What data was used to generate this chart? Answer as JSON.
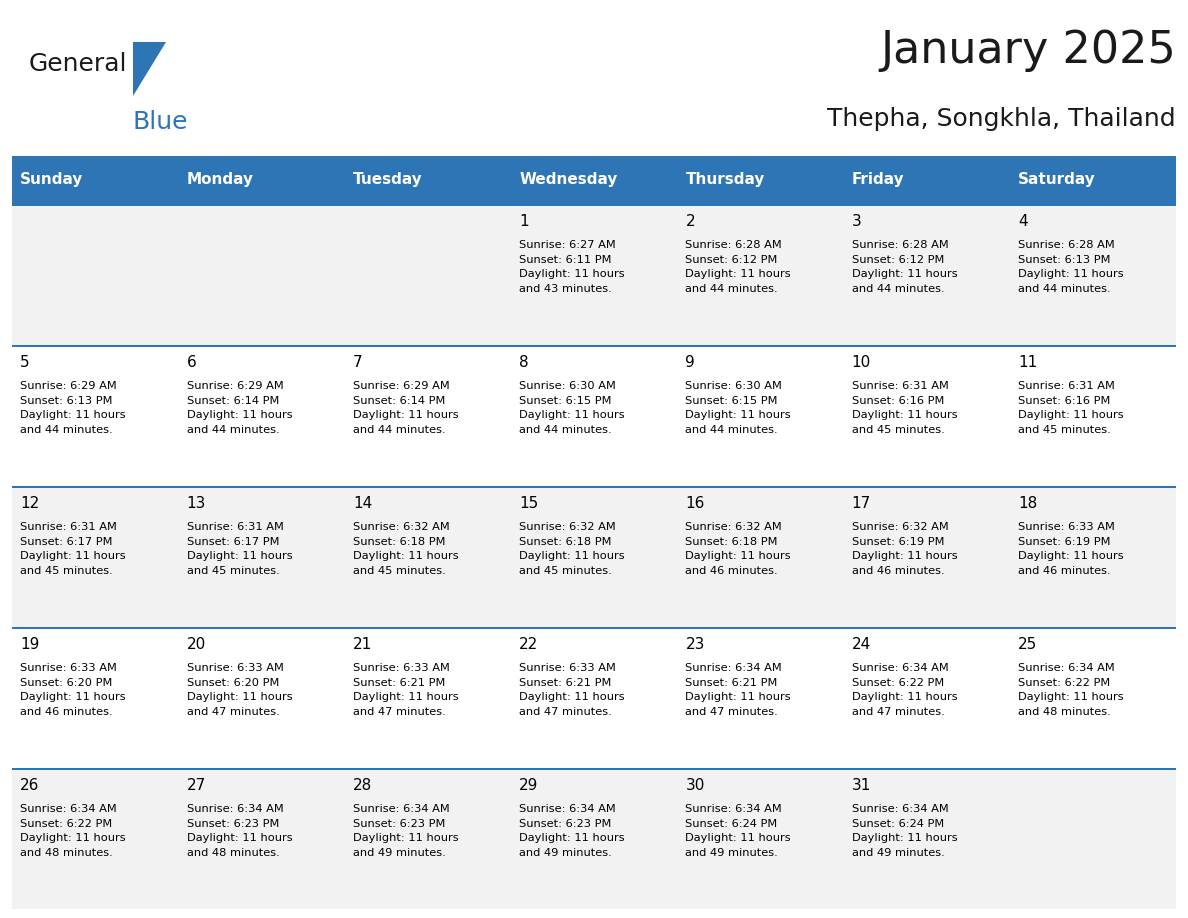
{
  "title": "January 2025",
  "subtitle": "Thepha, Songkhla, Thailand",
  "header_bg": "#2E75B6",
  "header_text_color": "#FFFFFF",
  "day_headers": [
    "Sunday",
    "Monday",
    "Tuesday",
    "Wednesday",
    "Thursday",
    "Friday",
    "Saturday"
  ],
  "cell_bg_even": "#F2F2F2",
  "cell_bg_odd": "#FFFFFF",
  "row_line_color": "#2E75B6",
  "text_color": "#000000",
  "calendar": [
    [
      {
        "day": null,
        "info": null
      },
      {
        "day": null,
        "info": null
      },
      {
        "day": null,
        "info": null
      },
      {
        "day": 1,
        "info": "Sunrise: 6:27 AM\nSunset: 6:11 PM\nDaylight: 11 hours\nand 43 minutes."
      },
      {
        "day": 2,
        "info": "Sunrise: 6:28 AM\nSunset: 6:12 PM\nDaylight: 11 hours\nand 44 minutes."
      },
      {
        "day": 3,
        "info": "Sunrise: 6:28 AM\nSunset: 6:12 PM\nDaylight: 11 hours\nand 44 minutes."
      },
      {
        "day": 4,
        "info": "Sunrise: 6:28 AM\nSunset: 6:13 PM\nDaylight: 11 hours\nand 44 minutes."
      }
    ],
    [
      {
        "day": 5,
        "info": "Sunrise: 6:29 AM\nSunset: 6:13 PM\nDaylight: 11 hours\nand 44 minutes."
      },
      {
        "day": 6,
        "info": "Sunrise: 6:29 AM\nSunset: 6:14 PM\nDaylight: 11 hours\nand 44 minutes."
      },
      {
        "day": 7,
        "info": "Sunrise: 6:29 AM\nSunset: 6:14 PM\nDaylight: 11 hours\nand 44 minutes."
      },
      {
        "day": 8,
        "info": "Sunrise: 6:30 AM\nSunset: 6:15 PM\nDaylight: 11 hours\nand 44 minutes."
      },
      {
        "day": 9,
        "info": "Sunrise: 6:30 AM\nSunset: 6:15 PM\nDaylight: 11 hours\nand 44 minutes."
      },
      {
        "day": 10,
        "info": "Sunrise: 6:31 AM\nSunset: 6:16 PM\nDaylight: 11 hours\nand 45 minutes."
      },
      {
        "day": 11,
        "info": "Sunrise: 6:31 AM\nSunset: 6:16 PM\nDaylight: 11 hours\nand 45 minutes."
      }
    ],
    [
      {
        "day": 12,
        "info": "Sunrise: 6:31 AM\nSunset: 6:17 PM\nDaylight: 11 hours\nand 45 minutes."
      },
      {
        "day": 13,
        "info": "Sunrise: 6:31 AM\nSunset: 6:17 PM\nDaylight: 11 hours\nand 45 minutes."
      },
      {
        "day": 14,
        "info": "Sunrise: 6:32 AM\nSunset: 6:18 PM\nDaylight: 11 hours\nand 45 minutes."
      },
      {
        "day": 15,
        "info": "Sunrise: 6:32 AM\nSunset: 6:18 PM\nDaylight: 11 hours\nand 45 minutes."
      },
      {
        "day": 16,
        "info": "Sunrise: 6:32 AM\nSunset: 6:18 PM\nDaylight: 11 hours\nand 46 minutes."
      },
      {
        "day": 17,
        "info": "Sunrise: 6:32 AM\nSunset: 6:19 PM\nDaylight: 11 hours\nand 46 minutes."
      },
      {
        "day": 18,
        "info": "Sunrise: 6:33 AM\nSunset: 6:19 PM\nDaylight: 11 hours\nand 46 minutes."
      }
    ],
    [
      {
        "day": 19,
        "info": "Sunrise: 6:33 AM\nSunset: 6:20 PM\nDaylight: 11 hours\nand 46 minutes."
      },
      {
        "day": 20,
        "info": "Sunrise: 6:33 AM\nSunset: 6:20 PM\nDaylight: 11 hours\nand 47 minutes."
      },
      {
        "day": 21,
        "info": "Sunrise: 6:33 AM\nSunset: 6:21 PM\nDaylight: 11 hours\nand 47 minutes."
      },
      {
        "day": 22,
        "info": "Sunrise: 6:33 AM\nSunset: 6:21 PM\nDaylight: 11 hours\nand 47 minutes."
      },
      {
        "day": 23,
        "info": "Sunrise: 6:34 AM\nSunset: 6:21 PM\nDaylight: 11 hours\nand 47 minutes."
      },
      {
        "day": 24,
        "info": "Sunrise: 6:34 AM\nSunset: 6:22 PM\nDaylight: 11 hours\nand 47 minutes."
      },
      {
        "day": 25,
        "info": "Sunrise: 6:34 AM\nSunset: 6:22 PM\nDaylight: 11 hours\nand 48 minutes."
      }
    ],
    [
      {
        "day": 26,
        "info": "Sunrise: 6:34 AM\nSunset: 6:22 PM\nDaylight: 11 hours\nand 48 minutes."
      },
      {
        "day": 27,
        "info": "Sunrise: 6:34 AM\nSunset: 6:23 PM\nDaylight: 11 hours\nand 48 minutes."
      },
      {
        "day": 28,
        "info": "Sunrise: 6:34 AM\nSunset: 6:23 PM\nDaylight: 11 hours\nand 49 minutes."
      },
      {
        "day": 29,
        "info": "Sunrise: 6:34 AM\nSunset: 6:23 PM\nDaylight: 11 hours\nand 49 minutes."
      },
      {
        "day": 30,
        "info": "Sunrise: 6:34 AM\nSunset: 6:24 PM\nDaylight: 11 hours\nand 49 minutes."
      },
      {
        "day": 31,
        "info": "Sunrise: 6:34 AM\nSunset: 6:24 PM\nDaylight: 11 hours\nand 49 minutes."
      },
      {
        "day": null,
        "info": null
      }
    ]
  ],
  "logo_general_color": "#1a1a1a",
  "logo_blue_color": "#2E75B6",
  "logo_triangle_color": "#2E75B6"
}
